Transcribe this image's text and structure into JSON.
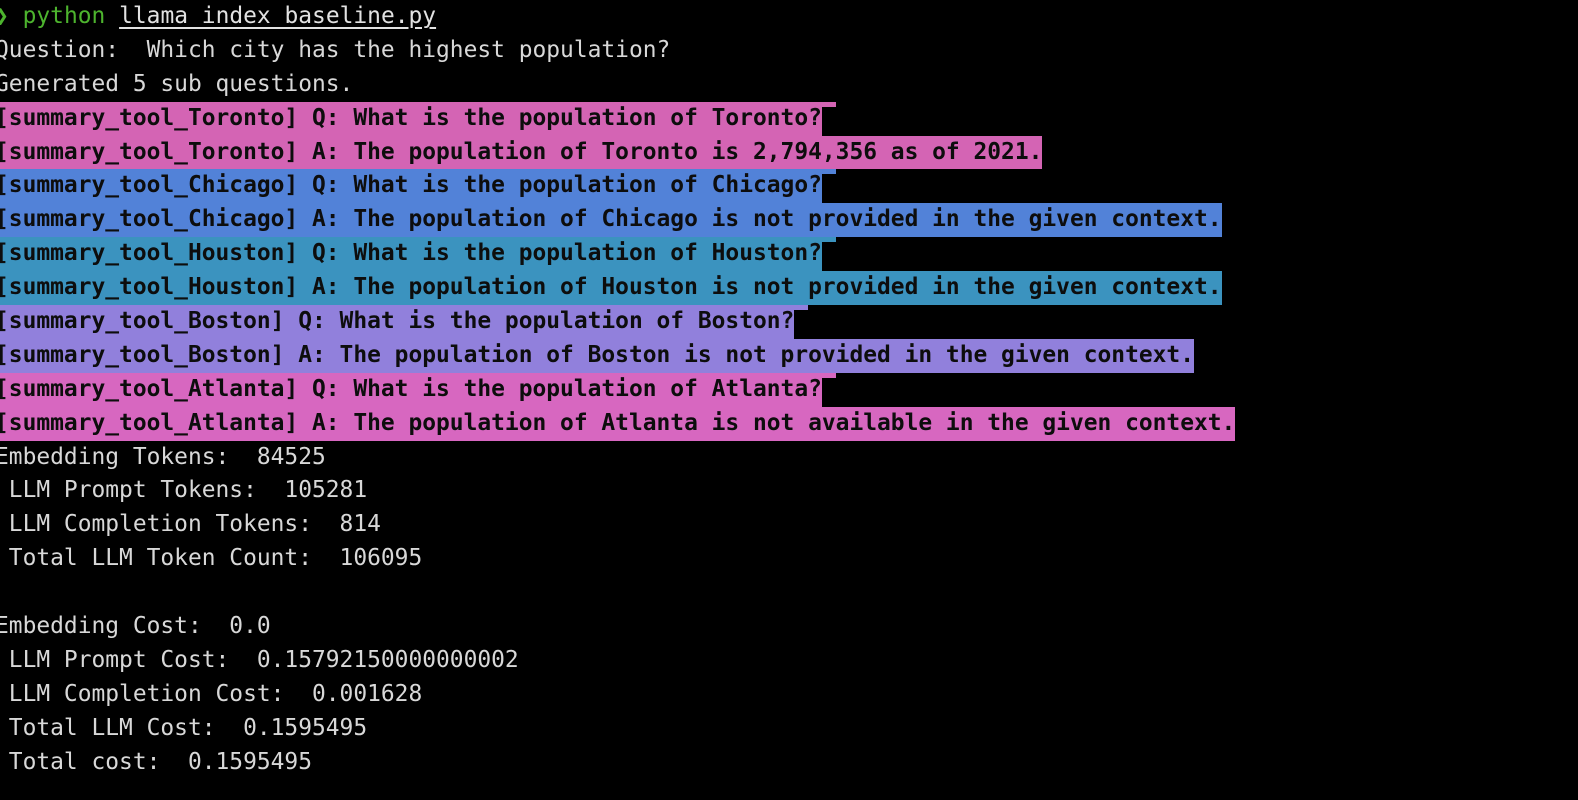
{
  "terminal": {
    "colors": {
      "background": "#000000",
      "foreground": "#d8d8d8",
      "prompt_green": "#4db42e",
      "highlight_text": "#0d0d0d"
    },
    "prompt": {
      "symbol": "❯",
      "command": "python",
      "file": "llama_index_baseline.py"
    },
    "intro": {
      "question_line": "Question:  Which city has the highest population?",
      "generated_line": "Generated 5 sub questions."
    },
    "subquestions": [
      {
        "tool": "summary_tool_Toronto",
        "q_line": "[summary_tool_Toronto] Q: What is the population of Toronto?",
        "a_line": "[summary_tool_Toronto] A: The population of Toronto is 2,794,356 as of 2021.",
        "highlight_color": "#d464b4"
      },
      {
        "tool": "summary_tool_Chicago",
        "q_line": "[summary_tool_Chicago] Q: What is the population of Chicago?",
        "a_line": "[summary_tool_Chicago] A: The population of Chicago is not provided in the given context.",
        "highlight_color": "#5282d8"
      },
      {
        "tool": "summary_tool_Houston",
        "q_line": "[summary_tool_Houston] Q: What is the population of Houston?",
        "a_line": "[summary_tool_Houston] A: The population of Houston is not provided in the given context.",
        "highlight_color": "#3b93bf"
      },
      {
        "tool": "summary_tool_Boston",
        "q_line": "[summary_tool_Boston] Q: What is the population of Boston?",
        "a_line": "[summary_tool_Boston] A: The population of Boston is not provided in the given context.",
        "highlight_color": "#9180dc"
      },
      {
        "tool": "summary_tool_Atlanta",
        "q_line": "[summary_tool_Atlanta] Q: What is the population of Atlanta?",
        "a_line": "[summary_tool_Atlanta] A: The population of Atlanta is not available in the given context.",
        "highlight_color": "#d767c0"
      }
    ],
    "token_stats": {
      "lines": [
        "Embedding Tokens:  84525",
        " LLM Prompt Tokens:  105281",
        " LLM Completion Tokens:  814",
        " Total LLM Token Count:  106095"
      ]
    },
    "cost_stats": {
      "lines": [
        "Embedding Cost:  0.0",
        " LLM Prompt Cost:  0.15792150000000002",
        " LLM Completion Cost:  0.001628",
        " Total LLM Cost:  0.1595495",
        " Total cost:  0.1595495"
      ]
    }
  }
}
